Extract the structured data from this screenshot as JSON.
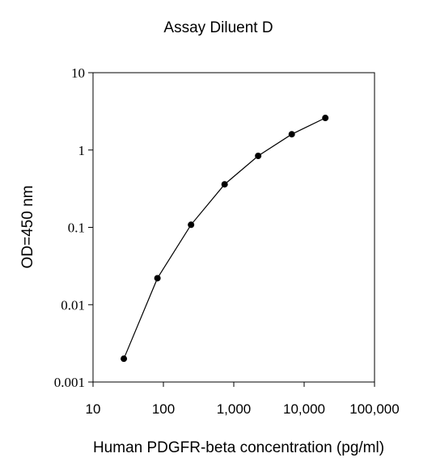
{
  "chart_data": {
    "type": "scatter",
    "title": "Assay Diluent D",
    "xlabel": "Human PDGFR-beta concentration (pg/ml)",
    "ylabel": "OD=450 nm",
    "xscale": "log",
    "yscale": "log",
    "xlim": [
      10,
      100000
    ],
    "ylim": [
      0.001,
      10
    ],
    "xticks": [
      "10",
      "100",
      "1,000",
      "10,000",
      "100,000"
    ],
    "yticks": [
      "0.001",
      "0.01",
      "0.1",
      "1",
      "10"
    ],
    "grid": false,
    "legend": "none",
    "series": [
      {
        "x": [
          27.4,
          82.3,
          247,
          741,
          2222,
          6667,
          20000
        ],
        "y": [
          0.002,
          0.022,
          0.108,
          0.36,
          0.84,
          1.6,
          2.6
        ],
        "color": "#000000",
        "marker": "circle",
        "line": true
      }
    ]
  }
}
